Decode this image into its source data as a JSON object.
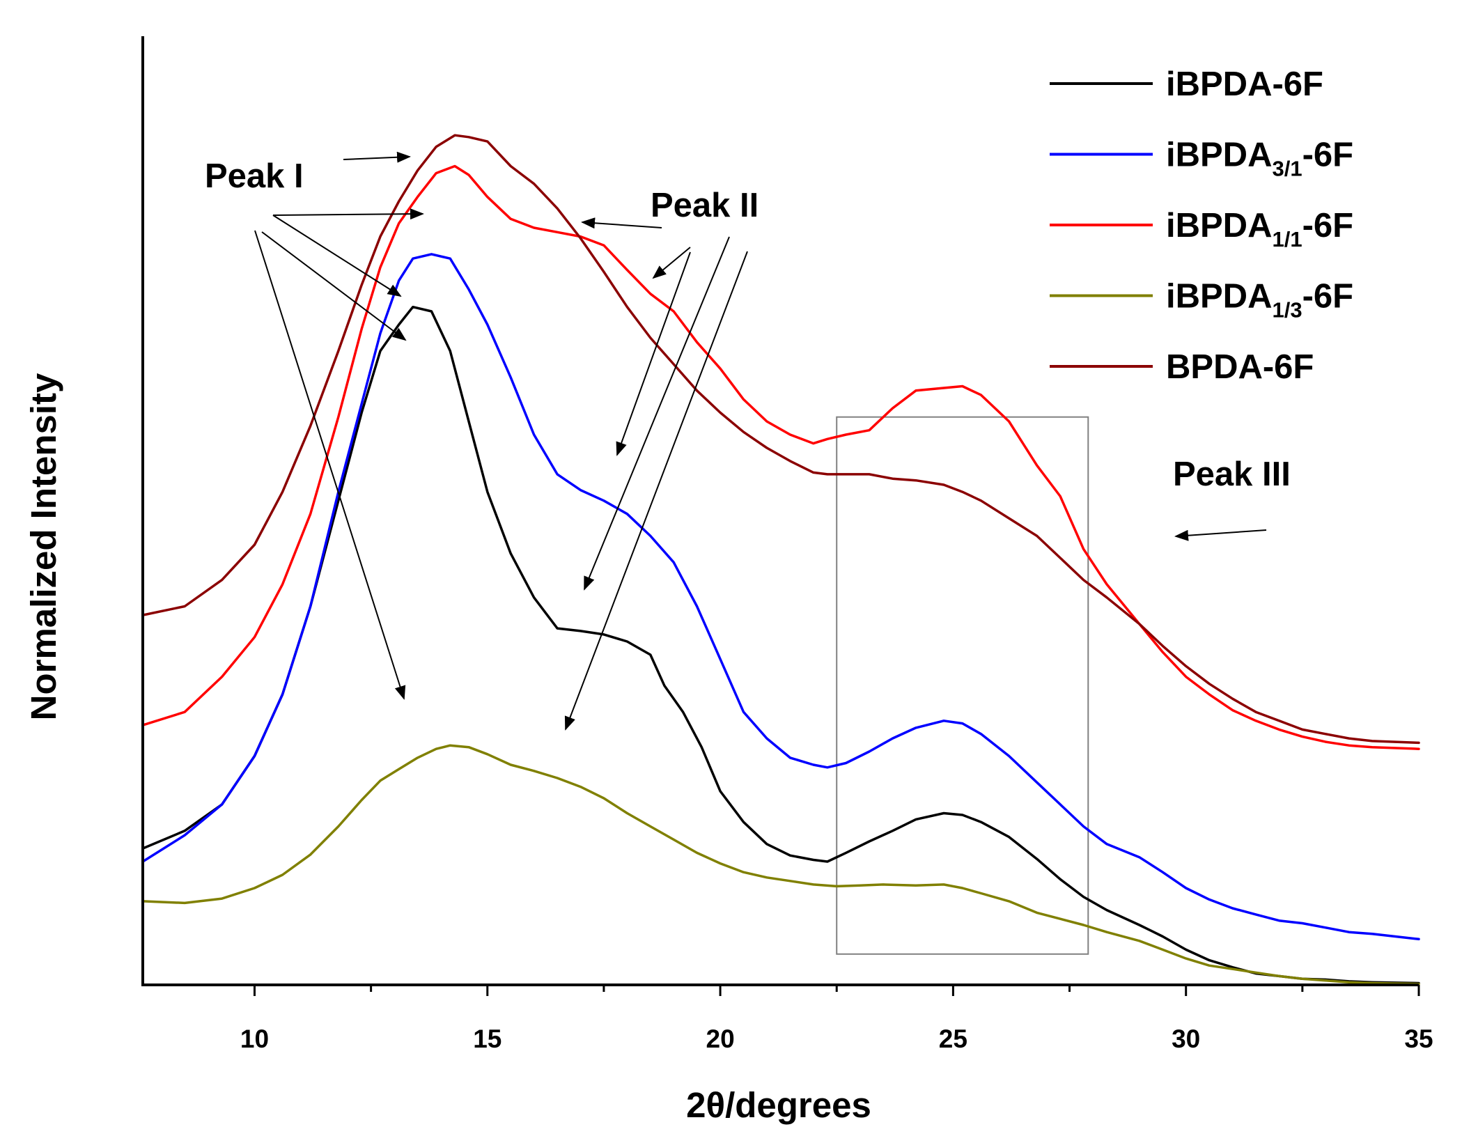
{
  "chart_data": {
    "type": "line",
    "xlabel": "2θ/degrees",
    "ylabel": "Normalized Intensity",
    "xlim": [
      7.6,
      35
    ],
    "ylim": [
      0,
      1
    ],
    "x_ticks": [
      10,
      15,
      20,
      25,
      30,
      35
    ],
    "x_tick_labels": [
      "10",
      "15",
      "20",
      "25",
      "30",
      "35"
    ],
    "y_tick_labels": [],
    "grid": false,
    "legend_position": "top-right",
    "series": [
      {
        "name": "iBPDA-6F",
        "legend_base": "iBPDA",
        "legend_sub": "",
        "legend_suffix": "-6F",
        "color": "#000000",
        "points": [
          [
            7.6,
            0.155
          ],
          [
            8.5,
            0.175
          ],
          [
            9.3,
            0.205
          ],
          [
            10,
            0.26
          ],
          [
            10.6,
            0.33
          ],
          [
            11.2,
            0.43
          ],
          [
            11.8,
            0.55
          ],
          [
            12.3,
            0.65
          ],
          [
            12.7,
            0.72
          ],
          [
            13.1,
            0.75
          ],
          [
            13.4,
            0.77
          ],
          [
            13.8,
            0.765
          ],
          [
            14.2,
            0.72
          ],
          [
            14.6,
            0.64
          ],
          [
            15.0,
            0.56
          ],
          [
            15.5,
            0.49
          ],
          [
            16.0,
            0.44
          ],
          [
            16.5,
            0.405
          ],
          [
            17.0,
            0.402
          ],
          [
            17.5,
            0.398
          ],
          [
            18.0,
            0.39
          ],
          [
            18.5,
            0.375
          ],
          [
            18.8,
            0.34
          ],
          [
            19.2,
            0.31
          ],
          [
            19.6,
            0.27
          ],
          [
            20.0,
            0.22
          ],
          [
            20.5,
            0.185
          ],
          [
            21.0,
            0.16
          ],
          [
            21.5,
            0.147
          ],
          [
            22.0,
            0.142
          ],
          [
            22.3,
            0.14
          ],
          [
            22.7,
            0.15
          ],
          [
            23.2,
            0.163
          ],
          [
            23.7,
            0.175
          ],
          [
            24.2,
            0.188
          ],
          [
            24.8,
            0.195
          ],
          [
            25.2,
            0.193
          ],
          [
            25.6,
            0.185
          ],
          [
            26.2,
            0.168
          ],
          [
            26.8,
            0.143
          ],
          [
            27.3,
            0.12
          ],
          [
            27.8,
            0.1
          ],
          [
            28.3,
            0.085
          ],
          [
            29.0,
            0.068
          ],
          [
            29.5,
            0.055
          ],
          [
            30.0,
            0.04
          ],
          [
            30.5,
            0.028
          ],
          [
            31.0,
            0.02
          ],
          [
            31.5,
            0.013
          ],
          [
            32.0,
            0.01
          ],
          [
            32.5,
            0.007
          ],
          [
            33.0,
            0.006
          ],
          [
            33.5,
            0.004
          ],
          [
            34.0,
            0.003
          ],
          [
            35.0,
            0.002
          ]
        ]
      },
      {
        "name": "iBPDA3/1-6F",
        "legend_base": "iBPDA",
        "legend_sub": "3/1",
        "legend_suffix": "-6F",
        "color": "#0000ff",
        "points": [
          [
            7.6,
            0.14
          ],
          [
            8.5,
            0.17
          ],
          [
            9.3,
            0.205
          ],
          [
            10,
            0.26
          ],
          [
            10.6,
            0.33
          ],
          [
            11.2,
            0.43
          ],
          [
            11.8,
            0.56
          ],
          [
            12.3,
            0.66
          ],
          [
            12.7,
            0.74
          ],
          [
            13.1,
            0.8
          ],
          [
            13.4,
            0.825
          ],
          [
            13.8,
            0.83
          ],
          [
            14.2,
            0.825
          ],
          [
            14.6,
            0.79
          ],
          [
            15.0,
            0.75
          ],
          [
            15.5,
            0.69
          ],
          [
            16.0,
            0.625
          ],
          [
            16.5,
            0.58
          ],
          [
            17.0,
            0.562
          ],
          [
            17.5,
            0.55
          ],
          [
            18.0,
            0.535
          ],
          [
            18.5,
            0.51
          ],
          [
            19.0,
            0.48
          ],
          [
            19.5,
            0.43
          ],
          [
            20.0,
            0.37
          ],
          [
            20.5,
            0.31
          ],
          [
            21.0,
            0.28
          ],
          [
            21.5,
            0.258
          ],
          [
            22.0,
            0.25
          ],
          [
            22.3,
            0.247
          ],
          [
            22.7,
            0.252
          ],
          [
            23.2,
            0.265
          ],
          [
            23.7,
            0.28
          ],
          [
            24.2,
            0.292
          ],
          [
            24.8,
            0.3
          ],
          [
            25.2,
            0.297
          ],
          [
            25.6,
            0.285
          ],
          [
            26.2,
            0.26
          ],
          [
            26.8,
            0.23
          ],
          [
            27.3,
            0.205
          ],
          [
            27.8,
            0.18
          ],
          [
            28.3,
            0.16
          ],
          [
            29.0,
            0.145
          ],
          [
            29.5,
            0.128
          ],
          [
            30.0,
            0.11
          ],
          [
            30.5,
            0.097
          ],
          [
            31.0,
            0.087
          ],
          [
            31.5,
            0.08
          ],
          [
            32.0,
            0.073
          ],
          [
            32.5,
            0.07
          ],
          [
            33.0,
            0.065
          ],
          [
            33.5,
            0.06
          ],
          [
            34.0,
            0.058
          ],
          [
            35.0,
            0.052
          ]
        ]
      },
      {
        "name": "iBPDA1/1-6F",
        "legend_base": "iBPDA",
        "legend_sub": "1/1",
        "legend_suffix": "-6F",
        "color": "#ff0000",
        "points": [
          [
            7.6,
            0.295
          ],
          [
            8.5,
            0.31
          ],
          [
            9.3,
            0.35
          ],
          [
            10,
            0.395
          ],
          [
            10.6,
            0.455
          ],
          [
            11.2,
            0.535
          ],
          [
            11.8,
            0.645
          ],
          [
            12.3,
            0.745
          ],
          [
            12.7,
            0.815
          ],
          [
            13.1,
            0.865
          ],
          [
            13.5,
            0.895
          ],
          [
            13.9,
            0.922
          ],
          [
            14.3,
            0.93
          ],
          [
            14.6,
            0.92
          ],
          [
            15.0,
            0.895
          ],
          [
            15.5,
            0.87
          ],
          [
            16.0,
            0.86
          ],
          [
            16.5,
            0.855
          ],
          [
            17.0,
            0.85
          ],
          [
            17.5,
            0.84
          ],
          [
            18.0,
            0.812
          ],
          [
            18.5,
            0.785
          ],
          [
            19.0,
            0.765
          ],
          [
            19.5,
            0.73
          ],
          [
            20.0,
            0.7
          ],
          [
            20.5,
            0.665
          ],
          [
            21.0,
            0.64
          ],
          [
            21.5,
            0.625
          ],
          [
            22.0,
            0.615
          ],
          [
            22.3,
            0.62
          ],
          [
            22.7,
            0.625
          ],
          [
            23.2,
            0.63
          ],
          [
            23.7,
            0.655
          ],
          [
            24.2,
            0.675
          ],
          [
            24.8,
            0.678
          ],
          [
            25.2,
            0.68
          ],
          [
            25.6,
            0.67
          ],
          [
            26.2,
            0.64
          ],
          [
            26.8,
            0.59
          ],
          [
            27.3,
            0.555
          ],
          [
            27.8,
            0.495
          ],
          [
            28.3,
            0.455
          ],
          [
            29.0,
            0.41
          ],
          [
            29.5,
            0.378
          ],
          [
            30.0,
            0.35
          ],
          [
            30.5,
            0.33
          ],
          [
            31.0,
            0.312
          ],
          [
            31.5,
            0.3
          ],
          [
            32.0,
            0.29
          ],
          [
            32.5,
            0.282
          ],
          [
            33.0,
            0.276
          ],
          [
            33.5,
            0.272
          ],
          [
            34.0,
            0.27
          ],
          [
            35.0,
            0.268
          ]
        ]
      },
      {
        "name": "iBPDA1/3-6F",
        "legend_base": "iBPDA",
        "legend_sub": "1/3",
        "legend_suffix": "-6F",
        "color": "#808000",
        "points": [
          [
            7.6,
            0.095
          ],
          [
            8.5,
            0.093
          ],
          [
            9.3,
            0.098
          ],
          [
            10,
            0.11
          ],
          [
            10.6,
            0.125
          ],
          [
            11.2,
            0.148
          ],
          [
            11.8,
            0.18
          ],
          [
            12.3,
            0.21
          ],
          [
            12.7,
            0.232
          ],
          [
            13.1,
            0.245
          ],
          [
            13.5,
            0.258
          ],
          [
            13.9,
            0.268
          ],
          [
            14.2,
            0.272
          ],
          [
            14.6,
            0.27
          ],
          [
            15.0,
            0.262
          ],
          [
            15.5,
            0.25
          ],
          [
            16.0,
            0.243
          ],
          [
            16.5,
            0.235
          ],
          [
            17.0,
            0.225
          ],
          [
            17.5,
            0.212
          ],
          [
            18.0,
            0.195
          ],
          [
            18.5,
            0.18
          ],
          [
            19.0,
            0.165
          ],
          [
            19.5,
            0.15
          ],
          [
            20.0,
            0.138
          ],
          [
            20.5,
            0.128
          ],
          [
            21.0,
            0.122
          ],
          [
            21.5,
            0.118
          ],
          [
            22.0,
            0.114
          ],
          [
            22.5,
            0.112
          ],
          [
            23.0,
            0.113
          ],
          [
            23.5,
            0.114
          ],
          [
            24.2,
            0.113
          ],
          [
            24.8,
            0.114
          ],
          [
            25.2,
            0.11
          ],
          [
            25.6,
            0.104
          ],
          [
            26.2,
            0.095
          ],
          [
            26.8,
            0.082
          ],
          [
            27.3,
            0.075
          ],
          [
            27.8,
            0.068
          ],
          [
            28.3,
            0.06
          ],
          [
            29.0,
            0.05
          ],
          [
            29.5,
            0.04
          ],
          [
            30.0,
            0.03
          ],
          [
            30.5,
            0.022
          ],
          [
            31.0,
            0.018
          ],
          [
            31.5,
            0.014
          ],
          [
            32.0,
            0.01
          ],
          [
            32.5,
            0.007
          ],
          [
            33.0,
            0.005
          ],
          [
            33.5,
            0.003
          ],
          [
            34.0,
            0.002
          ],
          [
            35.0,
            0.001
          ]
        ]
      },
      {
        "name": "BPDA-6F",
        "legend_base": "BPDA",
        "legend_sub": "",
        "legend_suffix": "-6F",
        "color": "#8b0000",
        "points": [
          [
            7.6,
            0.42
          ],
          [
            8.5,
            0.43
          ],
          [
            9.3,
            0.46
          ],
          [
            10,
            0.5
          ],
          [
            10.6,
            0.56
          ],
          [
            11.2,
            0.635
          ],
          [
            11.8,
            0.72
          ],
          [
            12.3,
            0.795
          ],
          [
            12.7,
            0.85
          ],
          [
            13.1,
            0.89
          ],
          [
            13.5,
            0.925
          ],
          [
            13.9,
            0.952
          ],
          [
            14.3,
            0.965
          ],
          [
            14.6,
            0.963
          ],
          [
            15.0,
            0.958
          ],
          [
            15.5,
            0.93
          ],
          [
            16.0,
            0.91
          ],
          [
            16.5,
            0.882
          ],
          [
            17.0,
            0.848
          ],
          [
            17.5,
            0.81
          ],
          [
            18.0,
            0.77
          ],
          [
            18.5,
            0.735
          ],
          [
            19.0,
            0.705
          ],
          [
            19.5,
            0.675
          ],
          [
            20.0,
            0.65
          ],
          [
            20.5,
            0.628
          ],
          [
            21.0,
            0.61
          ],
          [
            21.5,
            0.595
          ],
          [
            22.0,
            0.582
          ],
          [
            22.3,
            0.58
          ],
          [
            22.7,
            0.58
          ],
          [
            23.2,
            0.58
          ],
          [
            23.7,
            0.575
          ],
          [
            24.2,
            0.573
          ],
          [
            24.8,
            0.568
          ],
          [
            25.2,
            0.56
          ],
          [
            25.6,
            0.55
          ],
          [
            26.2,
            0.53
          ],
          [
            26.8,
            0.51
          ],
          [
            27.3,
            0.485
          ],
          [
            27.8,
            0.46
          ],
          [
            28.3,
            0.44
          ],
          [
            29.0,
            0.41
          ],
          [
            29.5,
            0.385
          ],
          [
            30.0,
            0.362
          ],
          [
            30.5,
            0.342
          ],
          [
            31.0,
            0.325
          ],
          [
            31.5,
            0.31
          ],
          [
            32.0,
            0.3
          ],
          [
            32.5,
            0.29
          ],
          [
            33.0,
            0.285
          ],
          [
            33.5,
            0.28
          ],
          [
            34.0,
            0.277
          ],
          [
            35.0,
            0.275
          ]
        ]
      }
    ],
    "annotations": [
      {
        "name": "peak-1",
        "text": "Peak I"
      },
      {
        "name": "peak-2",
        "text": "Peak II"
      },
      {
        "name": "peak-3",
        "text": "Peak III"
      }
    ],
    "highlight_box": {
      "x": [
        22.5,
        27.9
      ],
      "y": [
        0.035,
        0.645
      ]
    }
  }
}
